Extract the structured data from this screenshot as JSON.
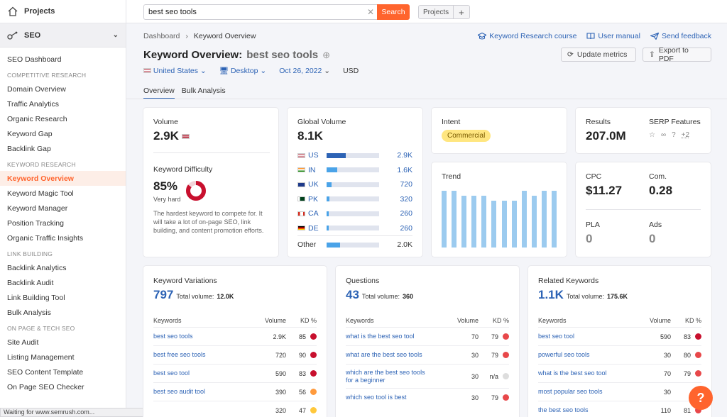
{
  "sidebar": {
    "projects": "Projects",
    "seo": "SEO",
    "dashboard": "SEO Dashboard",
    "sections": [
      {
        "title": "COMPETITIVE RESEARCH",
        "items": [
          "Domain Overview",
          "Traffic Analytics",
          "Organic Research",
          "Keyword Gap",
          "Backlink Gap"
        ]
      },
      {
        "title": "KEYWORD RESEARCH",
        "items": [
          "Keyword Overview",
          "Keyword Magic Tool",
          "Keyword Manager",
          "Position Tracking",
          "Organic Traffic Insights"
        ]
      },
      {
        "title": "LINK BUILDING",
        "items": [
          "Backlink Analytics",
          "Backlink Audit",
          "Link Building Tool",
          "Bulk Analysis"
        ]
      },
      {
        "title": "ON PAGE & TECH SEO",
        "items": [
          "Site Audit",
          "Listing Management",
          "SEO Content Template",
          "On Page SEO Checker"
        ]
      }
    ],
    "active": "Keyword Overview"
  },
  "status": "Waiting for www.semrush.com...",
  "topbar": {
    "search_value": "best seo tools",
    "search_btn": "Search",
    "projects_btn": "Projects",
    "plus": "+"
  },
  "breadcrumb": {
    "root": "Dashboard",
    "sep": "›",
    "current": "Keyword Overview"
  },
  "toplinks": {
    "course": "Keyword Research course",
    "manual": "User manual",
    "feedback": "Send feedback"
  },
  "title": {
    "label": "Keyword Overview:",
    "keyword": "best seo tools"
  },
  "actions": {
    "update": "Update metrics",
    "export": "Export to PDF"
  },
  "filters": {
    "country": "United States",
    "device": "Desktop",
    "date": "Oct 26, 2022",
    "currency": "USD"
  },
  "tabs": [
    "Overview",
    "Bulk Analysis"
  ],
  "volume": {
    "label": "Volume",
    "value": "2.9K"
  },
  "kd": {
    "label": "Keyword Difficulty",
    "value": "85%",
    "level": "Very hard",
    "percent": 85,
    "desc": "The hardest keyword to compete for. It will take a lot of on-page SEO, link building, and content promotion efforts."
  },
  "global": {
    "label": "Global Volume",
    "value": "8.1K",
    "rows": [
      {
        "cc": "US",
        "val": "2.9K",
        "pct": 36
      },
      {
        "cc": "IN",
        "val": "1.6K",
        "pct": 20
      },
      {
        "cc": "UK",
        "val": "720",
        "pct": 9
      },
      {
        "cc": "PK",
        "val": "320",
        "pct": 5
      },
      {
        "cc": "CA",
        "val": "260",
        "pct": 4
      },
      {
        "cc": "DE",
        "val": "260",
        "pct": 4
      }
    ],
    "other": {
      "cc": "Other",
      "val": "2.0K",
      "pct": 25
    }
  },
  "intent": {
    "label": "Intent",
    "value": "Commercial"
  },
  "trend": {
    "label": "Trend",
    "values": [
      0.78,
      0.78,
      0.71,
      0.71,
      0.71,
      0.64,
      0.64,
      0.64,
      0.78,
      0.71,
      0.78,
      0.78
    ]
  },
  "results": {
    "label": "Results",
    "value": "207.0M"
  },
  "serp": {
    "label": "SERP Features",
    "more": "+2"
  },
  "cpc": {
    "label": "CPC",
    "value": "$11.27"
  },
  "com": {
    "label": "Com.",
    "value": "0.28"
  },
  "pla": {
    "label": "PLA",
    "value": "0"
  },
  "ads": {
    "label": "Ads",
    "value": "0"
  },
  "panels": [
    {
      "title": "Keyword Variations",
      "count": "797",
      "tv_label": "Total volume:",
      "tv": "12.0K",
      "h_kw": "Keywords",
      "h_vol": "Volume",
      "h_kd": "KD %",
      "rows": [
        {
          "kw": "best seo tools",
          "vol": "2.9K",
          "kd": "85",
          "c": "#c8102e"
        },
        {
          "kw": "best free seo tools",
          "vol": "720",
          "kd": "90",
          "c": "#c8102e"
        },
        {
          "kw": "best seo tool",
          "vol": "590",
          "kd": "83",
          "c": "#c8102e"
        },
        {
          "kw": "best seo audit tool",
          "vol": "390",
          "kd": "56",
          "c": "#ff9a3c"
        },
        {
          "kw": "",
          "vol": "320",
          "kd": "47",
          "c": "#ffc83c"
        }
      ]
    },
    {
      "title": "Questions",
      "count": "43",
      "tv_label": "Total volume:",
      "tv": "360",
      "h_kw": "Keywords",
      "h_vol": "Volume",
      "h_kd": "KD %",
      "rows": [
        {
          "kw": "what is the best seo tool",
          "vol": "70",
          "kd": "79",
          "c": "#e8484a"
        },
        {
          "kw": "what are the best seo tools",
          "vol": "30",
          "kd": "79",
          "c": "#e8484a"
        },
        {
          "kw": "which are the best seo tools for a beginner",
          "vol": "30",
          "kd": "n/a",
          "c": "#ddd"
        },
        {
          "kw": "which seo tool is best",
          "vol": "30",
          "kd": "79",
          "c": "#e8484a"
        }
      ]
    },
    {
      "title": "Related Keywords",
      "count": "1.1K",
      "tv_label": "Total volume:",
      "tv": "175.6K",
      "h_kw": "Keywords",
      "h_vol": "Volume",
      "h_kd": "KD %",
      "rows": [
        {
          "kw": "best seo tool",
          "vol": "590",
          "kd": "83",
          "c": "#c8102e"
        },
        {
          "kw": "powerful seo tools",
          "vol": "30",
          "kd": "80",
          "c": "#e8484a"
        },
        {
          "kw": "what is the best seo tool",
          "vol": "70",
          "kd": "79",
          "c": "#e8484a"
        },
        {
          "kw": "most popular seo tools",
          "vol": "30",
          "kd": "",
          "c": "#e8484a"
        },
        {
          "kw": "the best seo tools",
          "vol": "110",
          "kd": "81",
          "c": "#e8484a"
        }
      ]
    }
  ],
  "help": "?"
}
